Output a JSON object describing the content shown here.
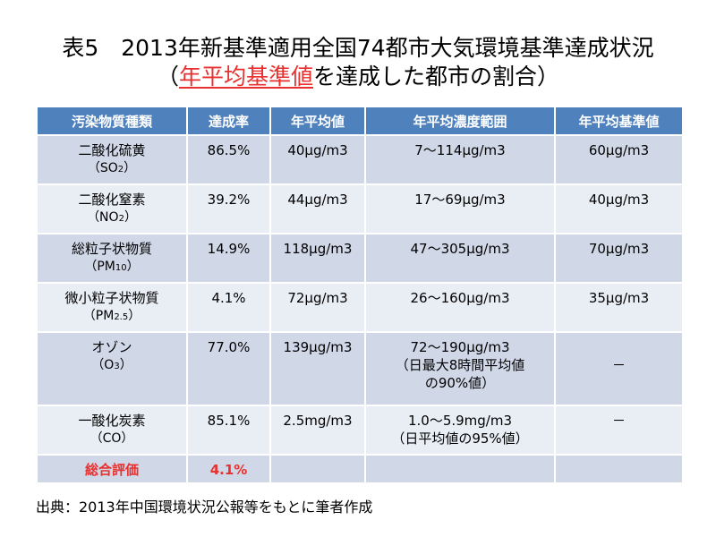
{
  "title": {
    "line1": "表5　2013年新基準適用全国74都市大気環境基準達成状況",
    "line2_open": "（",
    "line2_highlight": "年平均基準値",
    "line2_rest": "を達成した都市の割合）"
  },
  "table": {
    "headers": [
      "汚染物質種類",
      "達成率",
      "年平均値",
      "年平均濃度範囲",
      "年平均基準値"
    ],
    "rows": [
      {
        "name": "二酸化硫黄",
        "sub_open": "（SO",
        "sub_small": "2",
        "sub_close": "）",
        "rate": "86.5%",
        "avg": "40μg/m3",
        "range": "7～114μg/m3",
        "range_note": "",
        "std": "60μg/m3"
      },
      {
        "name": "二酸化窒素",
        "sub_open": "（NO",
        "sub_small": "2",
        "sub_close": "）",
        "rate": "39.2%",
        "avg": "44μg/m3",
        "range": "17～69μg/m3",
        "range_note": "",
        "std": "40μg/m3"
      },
      {
        "name": "総粒子状物質",
        "sub_open": "（PM",
        "sub_small": "10",
        "sub_close": "）",
        "rate": "14.9%",
        "avg": "118μg/m3",
        "range": "47～305μg/m3",
        "range_note": "",
        "std": "70μg/m3"
      },
      {
        "name": "微小粒子状物質",
        "sub_open": "（PM",
        "sub_small": "2.5",
        "sub_close": "）",
        "rate": "4.1%",
        "avg": "72μg/m3",
        "range": "26～160μg/m3",
        "range_note": "",
        "std": "35μg/m3"
      },
      {
        "name": "オゾン",
        "sub_open": "（O",
        "sub_small": "3",
        "sub_close": "）",
        "rate": "77.0%",
        "avg": "139μg/m3",
        "range": "72～190μg/m3",
        "range_note": "（日最大8時間平均値の90%値）",
        "std": "－"
      },
      {
        "name": "一酸化炭素",
        "sub_open": "（CO",
        "sub_small": "",
        "sub_close": "）",
        "rate": "85.1%",
        "avg": "2.5mg/m3",
        "range": "1.0～5.9mg/m3",
        "range_note": "（日平均値の95%値）",
        "std": "－"
      }
    ],
    "total": {
      "label": "総合評価",
      "rate": "4.1%"
    }
  },
  "source": "出典：2013年中国環境状況公報等をもとに筆者作成",
  "colors": {
    "header_bg": "#4f81bd",
    "row_odd": "#d0d8e8",
    "row_even": "#e9edf4",
    "highlight": "#e8312f"
  }
}
